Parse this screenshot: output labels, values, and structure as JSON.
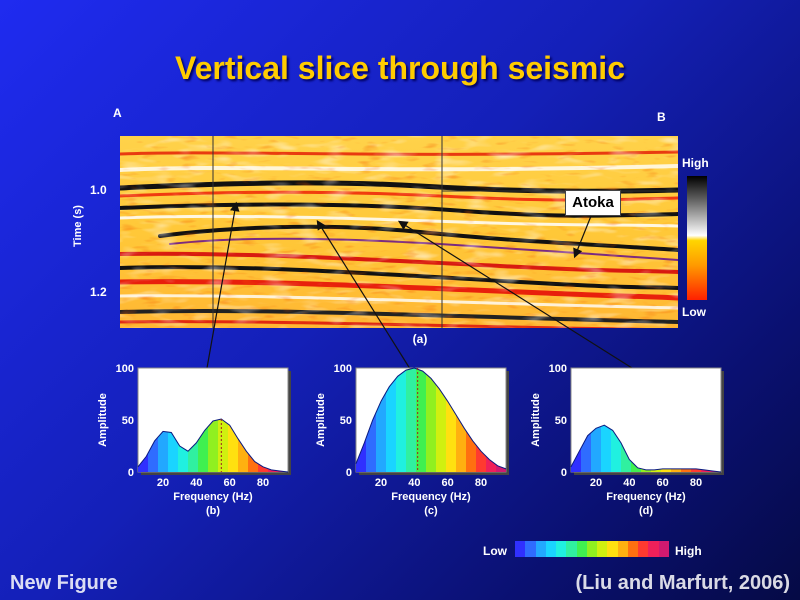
{
  "title": "Vertical slice through seismic",
  "section": {
    "left_label": "A",
    "right_label": "B",
    "ylabel": "Time  (s)",
    "y_ticks": [
      "1.0",
      "1.2"
    ],
    "caption": "(a)",
    "annotation": "Atoka",
    "colorbar_high": "High",
    "colorbar_low": "Low"
  },
  "chart_data": [
    {
      "type": "area",
      "caption": "(b)",
      "xlabel": "Frequency (Hz)",
      "ylabel": "Amplitude",
      "xlim": [
        5,
        95
      ],
      "ylim": [
        0,
        100
      ],
      "x_ticks": [
        20,
        40,
        60,
        80
      ],
      "y_ticks": [
        0,
        50,
        100
      ],
      "peak_x": 55,
      "x": [
        5,
        10,
        15,
        20,
        25,
        30,
        35,
        40,
        45,
        50,
        55,
        60,
        65,
        70,
        75,
        80,
        85,
        90,
        95
      ],
      "values": [
        5,
        15,
        30,
        39,
        38,
        25,
        20,
        28,
        40,
        49,
        51,
        45,
        32,
        20,
        10,
        5,
        2,
        1,
        0
      ]
    },
    {
      "type": "area",
      "caption": "(c)",
      "xlabel": "Frequency (Hz)",
      "ylabel": "Amplitude",
      "xlim": [
        5,
        95
      ],
      "ylim": [
        0,
        100
      ],
      "x_ticks": [
        20,
        40,
        60,
        80
      ],
      "y_ticks": [
        0,
        50,
        100
      ],
      "peak_x": 42,
      "x": [
        5,
        10,
        15,
        20,
        25,
        30,
        35,
        40,
        45,
        50,
        55,
        60,
        65,
        70,
        75,
        80,
        85,
        90,
        95
      ],
      "values": [
        8,
        28,
        50,
        68,
        82,
        92,
        98,
        100,
        97,
        90,
        80,
        68,
        55,
        42,
        30,
        20,
        12,
        6,
        3
      ]
    },
    {
      "type": "area",
      "caption": "(d)",
      "xlabel": "Frequency (Hz)",
      "ylabel": "Amplitude",
      "xlim": [
        5,
        95
      ],
      "ylim": [
        0,
        100
      ],
      "x_ticks": [
        20,
        40,
        60,
        80
      ],
      "y_ticks": [
        0,
        50,
        100
      ],
      "x": [
        5,
        10,
        15,
        20,
        25,
        30,
        35,
        40,
        45,
        50,
        55,
        60,
        65,
        70,
        75,
        80,
        85,
        90,
        95
      ],
      "values": [
        5,
        20,
        35,
        42,
        45,
        40,
        28,
        12,
        4,
        2,
        2,
        3,
        3,
        3,
        3,
        3,
        2,
        1,
        0
      ]
    }
  ],
  "spectrum_legend": {
    "low": "Low",
    "high": "High"
  },
  "footer": {
    "left": "New Figure",
    "right": "(Liu and Marfurt, 2006)"
  }
}
